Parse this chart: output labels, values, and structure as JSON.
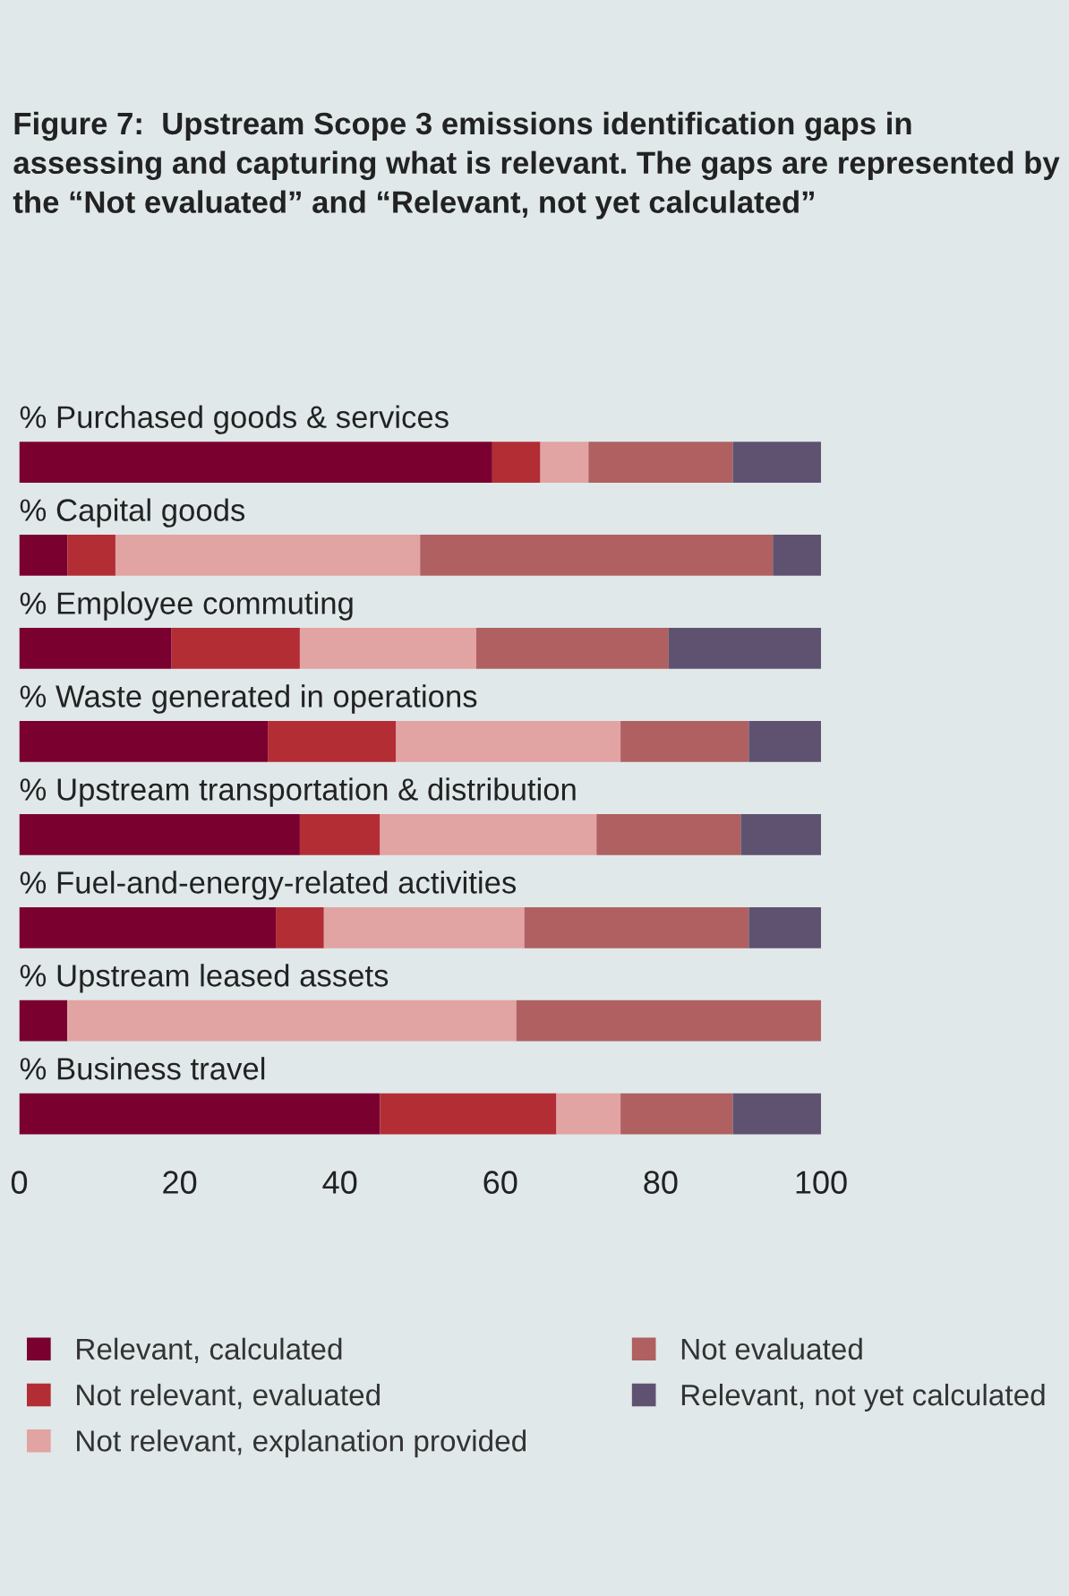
{
  "chart_data": {
    "type": "bar",
    "orientation": "horizontal",
    "stacked": true,
    "title": "Figure 7:  Upstream Scope 3 emissions identification gaps in assessing and capturing what is relevant. The gaps are represented by the “Not evaluated” and “Relevant, not yet calculated”",
    "categories": [
      "% Purchased goods & services",
      "% Capital goods",
      "% Employee commuting",
      "% Waste generated in operations",
      "% Upstream transportation & distribution",
      "% Fuel-and-energy-related activities",
      "% Upstream leased assets",
      "% Business travel"
    ],
    "series": [
      {
        "name": "Relevant, calculated",
        "color": "#7a0030",
        "values": [
          59,
          6,
          19,
          31,
          35,
          32,
          6,
          45
        ]
      },
      {
        "name": "Not relevant, evaluated",
        "color": "#b32d35",
        "values": [
          6,
          6,
          16,
          16,
          10,
          6,
          0,
          22
        ]
      },
      {
        "name": "Not relevant, explanation provided",
        "color": "#e2a3a3",
        "values": [
          6,
          38,
          22,
          28,
          27,
          25,
          56,
          8
        ]
      },
      {
        "name": "Not evaluated",
        "color": "#b06060",
        "values": [
          18,
          44,
          24,
          16,
          18,
          28,
          38,
          14
        ]
      },
      {
        "name": "Relevant, not yet calculated",
        "color": "#5f5270",
        "values": [
          11,
          6,
          19,
          9,
          10,
          9,
          0,
          11
        ]
      }
    ],
    "xlim": [
      0,
      100
    ],
    "xticks": [
      0,
      20,
      40,
      60,
      80,
      100
    ],
    "grid": false,
    "legend": "bottom"
  }
}
